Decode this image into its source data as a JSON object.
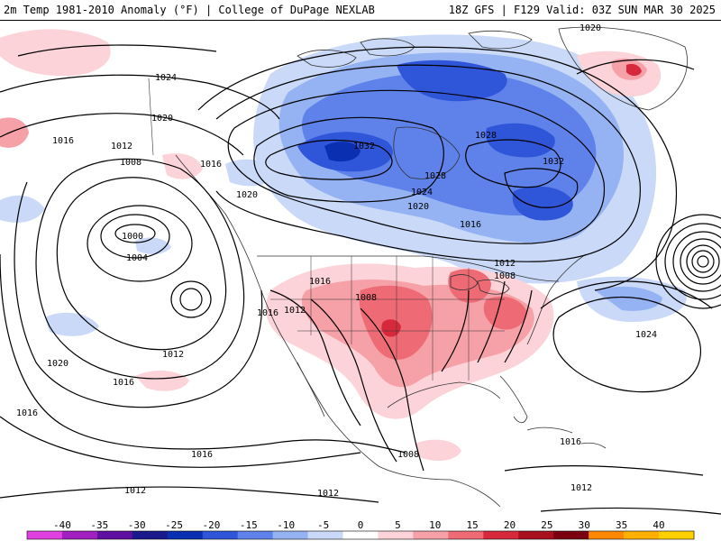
{
  "header": {
    "left_title": "2m Temp 1981-2010 Anomaly (°F) | College of DuPage NEXLAB",
    "right_title": "18Z GFS | F129 Valid: 03Z SUN MAR 30 2025"
  },
  "isobar_labels": [
    "1020",
    "1024",
    "1020",
    "1016",
    "1012",
    "1008",
    "1016",
    "1020",
    "1000",
    "1004",
    "1016",
    "1016",
    "1012",
    "1008",
    "1032",
    "1028",
    "1032",
    "1028",
    "1024",
    "1020",
    "1016",
    "1012",
    "1008",
    "1020",
    "1012",
    "1016",
    "1016",
    "1016",
    "1024",
    "1008",
    "1016",
    "1012",
    "1012",
    "1012"
  ],
  "colorbar": {
    "ticks": [
      "-40",
      "-35",
      "-30",
      "-25",
      "-20",
      "-15",
      "-10",
      "-5",
      "0",
      "5",
      "10",
      "15",
      "20",
      "25",
      "30",
      "35",
      "40"
    ],
    "colors": [
      "#e040e0",
      "#a020c0",
      "#6010a0",
      "#1a1a8c",
      "#0a2fb0",
      "#2f55d8",
      "#5e82ea",
      "#95b3f2",
      "#c9d9f7",
      "#ffffff",
      "#fbd3d8",
      "#f6a0a8",
      "#ee6a74",
      "#d62a3c",
      "#a8101e",
      "#7a0010",
      "#ff8800",
      "#ffb000",
      "#ffd000"
    ]
  },
  "map": {
    "cold_anomaly_color": "#2f55d8",
    "warm_anomaly_color": "#ee6a74",
    "contour_color": "#000000"
  }
}
